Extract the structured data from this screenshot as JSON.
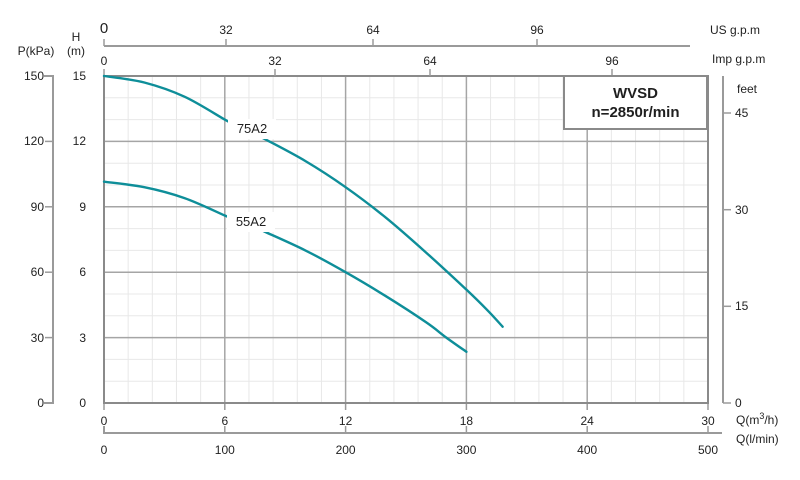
{
  "legend": {
    "model": "WVSD",
    "speed": "n=2850r/min"
  },
  "axes": {
    "p": {
      "label": "P(kPa)",
      "ticks": [
        "150",
        "120",
        "90",
        "60",
        "30",
        "0"
      ]
    },
    "h": {
      "symbol": "H",
      "unit": "(m)",
      "ticks": [
        "15",
        "12",
        "9",
        "6",
        "3",
        "0"
      ]
    },
    "us": {
      "label": "US g.p.m",
      "ticks": [
        "0",
        "32",
        "64",
        "96"
      ]
    },
    "imp": {
      "label": "Imp g.p.m",
      "ticks": [
        "0",
        "32",
        "64",
        "96"
      ]
    },
    "feet": {
      "label": "feet",
      "ticks": [
        "45",
        "30",
        "15",
        "0"
      ]
    },
    "qm3h": {
      "label_pre": "Q(m",
      "label_sup": "3",
      "label_post": "/h)",
      "label_display": "Q(m³/h)",
      "ticks": [
        "0",
        "6",
        "12",
        "18",
        "24",
        "30"
      ]
    },
    "qlmin": {
      "label": "Q(l/min)",
      "ticks": [
        "0",
        "100",
        "200",
        "300",
        "400",
        "500"
      ]
    }
  },
  "colors": {
    "curve": "#0e8e99",
    "grid_major": "#a5a5a5",
    "grid_minor": "#e8e8e8",
    "border": "#8a8a8a",
    "axis": "#9a9a9a",
    "text": "#1f1f1f"
  },
  "chart_data": {
    "type": "line",
    "title": "WVSD n=2850r/min pump performance curves",
    "xlabel": "Q(m³/h)",
    "ylabel": "H (m)",
    "x_axes": [
      {
        "label": "Q(m³/h)",
        "ticks": [
          0,
          6,
          12,
          18,
          24,
          30
        ],
        "range": [
          0,
          30
        ]
      },
      {
        "label": "Q(l/min)",
        "ticks": [
          0,
          100,
          200,
          300,
          400,
          500
        ],
        "range": [
          0,
          500
        ]
      },
      {
        "label": "US g.p.m",
        "ticks": [
          0,
          32,
          64,
          96
        ]
      },
      {
        "label": "Imp g.p.m",
        "ticks": [
          0,
          32,
          64,
          96
        ]
      }
    ],
    "y_axes": [
      {
        "label": "H (m)",
        "ticks": [
          0,
          3,
          6,
          9,
          12,
          15
        ],
        "range": [
          0,
          15
        ]
      },
      {
        "label": "P(kPa)",
        "ticks": [
          0,
          30,
          60,
          90,
          120,
          150
        ],
        "range": [
          0,
          150
        ]
      },
      {
        "label": "feet",
        "ticks": [
          0,
          15,
          30,
          45
        ],
        "range": [
          0,
          49
        ]
      }
    ],
    "grid": true,
    "legend_position": "top-right",
    "series": [
      {
        "name": "75A2",
        "points": [
          [
            0,
            15
          ],
          [
            2,
            14.7
          ],
          [
            4,
            14.05
          ],
          [
            6,
            13.0
          ],
          [
            8,
            12.1
          ],
          [
            10,
            11.1
          ],
          [
            12,
            9.9
          ],
          [
            14,
            8.5
          ],
          [
            16,
            6.9
          ],
          [
            18,
            5.2
          ],
          [
            19,
            4.3
          ],
          [
            19.8,
            3.5
          ]
        ],
        "label_gap_q": [
          6.3,
          7.6
        ]
      },
      {
        "name": "55A2",
        "points": [
          [
            0,
            10.15
          ],
          [
            2,
            9.9
          ],
          [
            4,
            9.4
          ],
          [
            6,
            8.6
          ],
          [
            8,
            7.85
          ],
          [
            10,
            7.0
          ],
          [
            12,
            6.0
          ],
          [
            14,
            4.9
          ],
          [
            16,
            3.7
          ],
          [
            17,
            3.0
          ],
          [
            18,
            2.35
          ]
        ],
        "label_gap_q": [
          6.3,
          7.7
        ]
      }
    ]
  }
}
